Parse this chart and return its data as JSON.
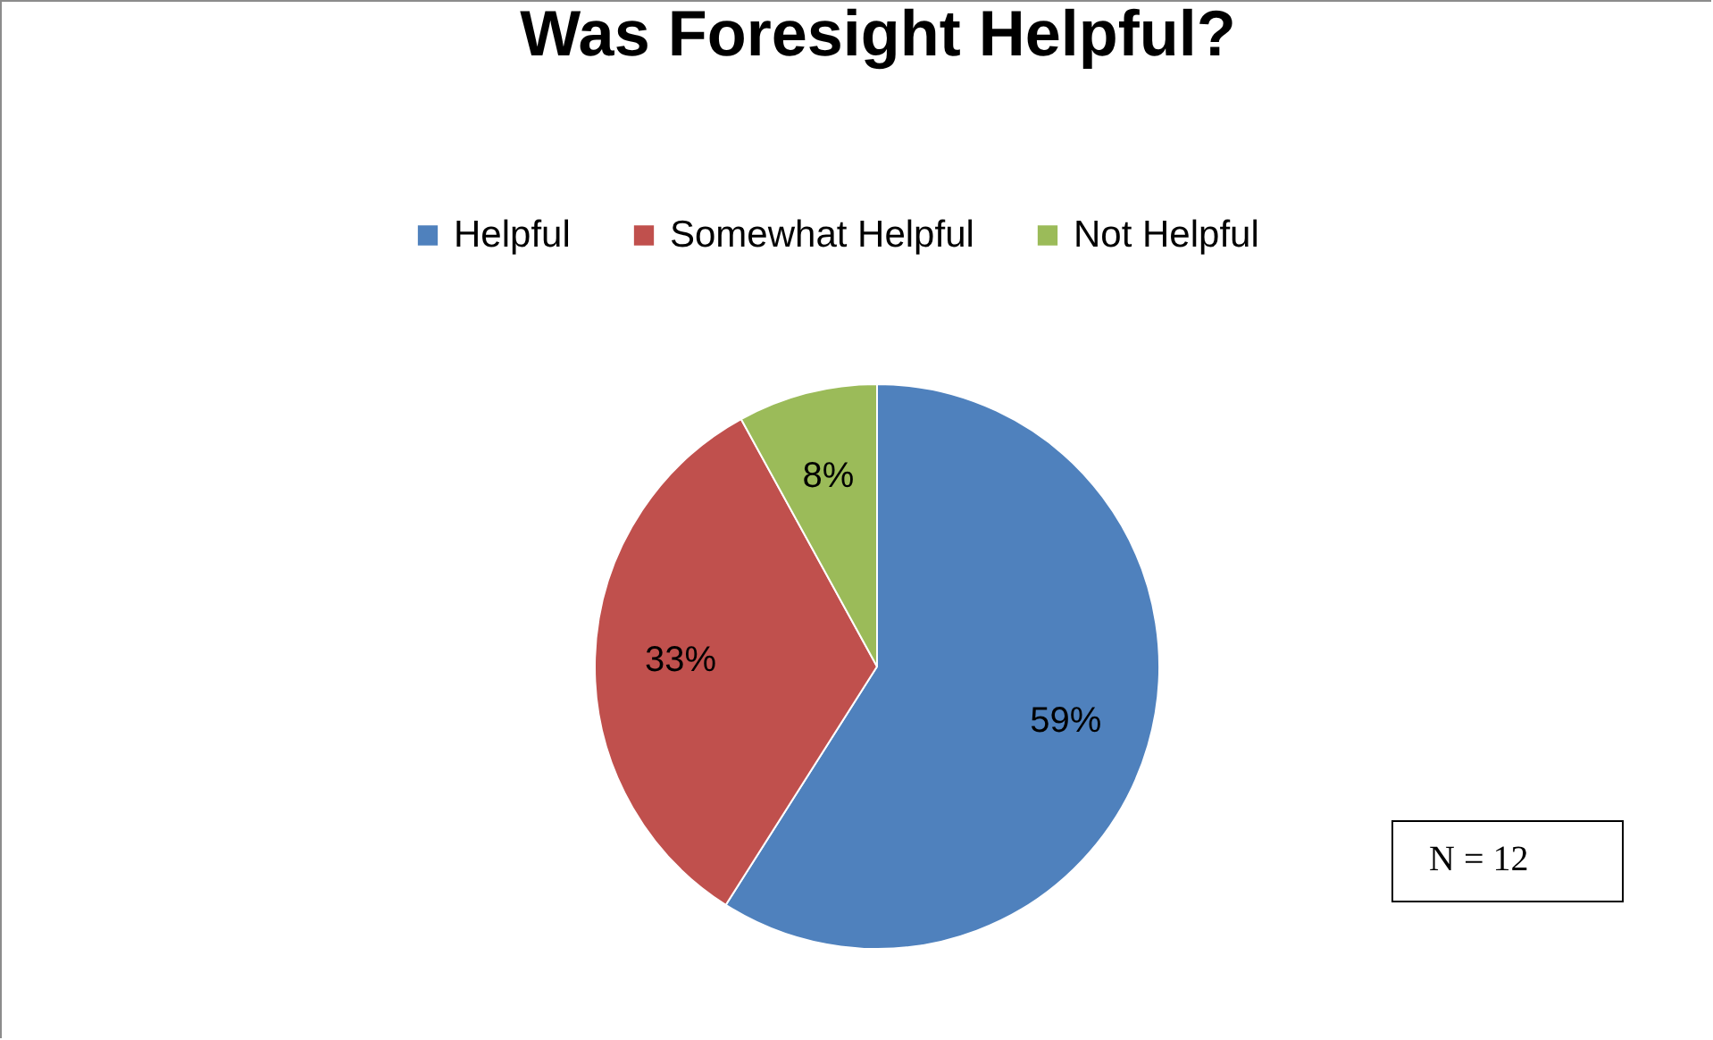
{
  "chart_data": {
    "type": "pie",
    "title": "Was Foresight Helpful?",
    "categories": [
      "Helpful",
      "Somewhat Helpful",
      "Not Helpful"
    ],
    "values": [
      59,
      33,
      8
    ],
    "colors": [
      "#4f81bd",
      "#c0504d",
      "#9bbb59"
    ],
    "value_labels": [
      "59%",
      "33%",
      "8%"
    ],
    "legend": "top",
    "annotations": [
      "N = 12"
    ]
  }
}
